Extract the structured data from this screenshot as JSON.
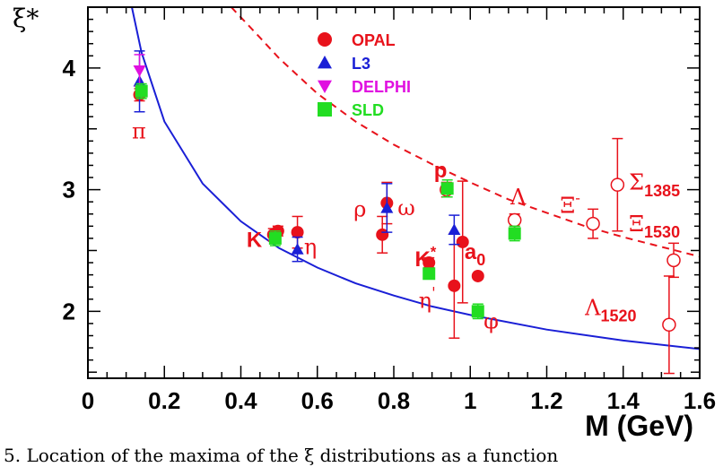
{
  "chart_data": {
    "type": "scatter",
    "ylabel": "ξ*",
    "xlabel": "M (GeV)",
    "xlim": [
      0,
      1.6
    ],
    "ylim": [
      1.45,
      4.5
    ],
    "xticks": [
      {
        "value": 0,
        "label": "0"
      },
      {
        "value": 0.2,
        "label": "0.2"
      },
      {
        "value": 0.4,
        "label": "0.4"
      },
      {
        "value": 0.6,
        "label": "0.6"
      },
      {
        "value": 0.8,
        "label": "0.8"
      },
      {
        "value": 1.0,
        "label": "1"
      },
      {
        "value": 1.2,
        "label": "1.2"
      },
      {
        "value": 1.4,
        "label": "1.4"
      },
      {
        "value": 1.6,
        "label": "1.6"
      }
    ],
    "yticks": [
      {
        "value": 2,
        "label": "2"
      },
      {
        "value": 3,
        "label": "3"
      },
      {
        "value": 4,
        "label": "4"
      }
    ],
    "legend": {
      "placement": "top-center",
      "entries": [
        {
          "name": "OPAL",
          "marker": "circle",
          "color": "#e8121b"
        },
        {
          "name": "L3",
          "marker": "triangle-up",
          "color": "#1a1fd6"
        },
        {
          "name": "DELPHI",
          "marker": "triangle-down",
          "color": "#e010e0"
        },
        {
          "name": "SLD",
          "marker": "square",
          "color": "#22dd22"
        }
      ]
    },
    "series": [
      {
        "name": "OPAL",
        "marker": "circle",
        "color": "#e8121b",
        "points": [
          {
            "x": 0.135,
            "y": 3.78,
            "err": 0.05
          },
          {
            "x": 0.485,
            "y": 2.63,
            "err": 0.05
          },
          {
            "x": 0.497,
            "y": 2.66,
            "err": 0.04
          },
          {
            "x": 0.548,
            "y": 2.65,
            "err": 0.13
          },
          {
            "x": 0.77,
            "y": 2.63,
            "err": 0.15
          },
          {
            "x": 0.782,
            "y": 2.89,
            "err": 0.17
          },
          {
            "x": 0.892,
            "y": 2.4,
            "err": 0.04
          },
          {
            "x": 0.958,
            "y": 2.21,
            "err": 0.43
          },
          {
            "x": 0.98,
            "y": 2.57,
            "err": 0.5
          },
          {
            "x": 1.02,
            "y": 2.29,
            "err": 0.02
          }
        ]
      },
      {
        "name": "OPAL (open)",
        "marker": "circle-open",
        "color": "#e8121b",
        "points": [
          {
            "x": 0.938,
            "y": 3.0,
            "err": 0.06
          },
          {
            "x": 1.116,
            "y": 2.75,
            "err": 0.05
          },
          {
            "x": 1.321,
            "y": 2.72,
            "err": 0.12
          },
          {
            "x": 1.385,
            "y": 3.04,
            "err": 0.38
          },
          {
            "x": 1.52,
            "y": 1.89,
            "err": 0.4
          },
          {
            "x": 1.532,
            "y": 2.42,
            "err": 0.14
          }
        ]
      },
      {
        "name": "L3",
        "marker": "triangle-up",
        "color": "#1a1fd6",
        "points": [
          {
            "x": 0.135,
            "y": 3.89,
            "err": 0.25
          },
          {
            "x": 0.548,
            "y": 2.51,
            "err": 0.1
          },
          {
            "x": 0.782,
            "y": 2.85,
            "err": 0.2
          },
          {
            "x": 0.958,
            "y": 2.67,
            "err": 0.12
          }
        ]
      },
      {
        "name": "DELPHI",
        "marker": "triangle-down",
        "color": "#e010e0",
        "points": [
          {
            "x": 0.135,
            "y": 3.98,
            "err": 0.13
          }
        ]
      },
      {
        "name": "SLD",
        "marker": "square",
        "color": "#22dd22",
        "points": [
          {
            "x": 0.14,
            "y": 3.81,
            "err": 0.06
          },
          {
            "x": 0.49,
            "y": 2.6,
            "err": 0.06
          },
          {
            "x": 0.892,
            "y": 2.31,
            "err": 0.03
          },
          {
            "x": 0.94,
            "y": 3.01,
            "err": 0.07
          },
          {
            "x": 1.02,
            "y": 2.0,
            "err": 0.06
          },
          {
            "x": 1.116,
            "y": 2.64,
            "err": 0.06
          }
        ]
      }
    ],
    "curves": [
      {
        "style": "solid",
        "color": "#1a1fd6",
        "points": [
          [
            0.115,
            4.5
          ],
          [
            0.14,
            4.13
          ],
          [
            0.2,
            3.56
          ],
          [
            0.3,
            3.05
          ],
          [
            0.4,
            2.74
          ],
          [
            0.5,
            2.52
          ],
          [
            0.6,
            2.36
          ],
          [
            0.7,
            2.23
          ],
          [
            0.8,
            2.13
          ],
          [
            0.9,
            2.04
          ],
          [
            1.0,
            1.97
          ],
          [
            1.2,
            1.85
          ],
          [
            1.4,
            1.76
          ],
          [
            1.6,
            1.69
          ]
        ]
      },
      {
        "style": "dashed",
        "color": "#e8121b",
        "points": [
          [
            0.375,
            4.5
          ],
          [
            0.45,
            4.25
          ],
          [
            0.5,
            4.08
          ],
          [
            0.6,
            3.79
          ],
          [
            0.7,
            3.56
          ],
          [
            0.8,
            3.37
          ],
          [
            0.9,
            3.21
          ],
          [
            1.0,
            3.06
          ],
          [
            1.1,
            2.92
          ],
          [
            1.2,
            2.81
          ],
          [
            1.3,
            2.7
          ],
          [
            1.4,
            2.61
          ],
          [
            1.5,
            2.53
          ],
          [
            1.6,
            2.45
          ]
        ]
      }
    ],
    "annotations": [
      {
        "text": "π",
        "x": 0.115,
        "y": 3.42,
        "style": "serif",
        "size": 24
      },
      {
        "text": "K",
        "x": 0.415,
        "y": 2.53,
        "style": "sans",
        "size": 24,
        "sup": ""
      },
      {
        "text": "η",
        "x": 0.565,
        "y": 2.47,
        "style": "serif",
        "size": 24
      },
      {
        "text": "ρ",
        "x": 0.695,
        "y": 2.78,
        "style": "serif",
        "size": 24
      },
      {
        "text": "ω",
        "x": 0.81,
        "y": 2.79,
        "style": "serif",
        "size": 24
      },
      {
        "text": "p",
        "x": 0.905,
        "y": 3.1,
        "style": "sans",
        "size": 24
      },
      {
        "text": "K",
        "x": 0.855,
        "y": 2.37,
        "style": "sans",
        "size": 24,
        "sup": "*"
      },
      {
        "text": "a",
        "x": 0.985,
        "y": 2.43,
        "style": "sans",
        "size": 24,
        "sub": "0"
      },
      {
        "text": "η",
        "x": 0.865,
        "y": 2.03,
        "style": "serif",
        "size": 24,
        "sup": "'"
      },
      {
        "text": "φ",
        "x": 1.035,
        "y": 1.86,
        "style": "serif",
        "size": 24
      },
      {
        "text": "Λ",
        "x": 1.105,
        "y": 2.88,
        "style": "serif",
        "size": 24
      },
      {
        "text": "Ξ",
        "x": 1.235,
        "y": 2.81,
        "style": "serif",
        "size": 24,
        "sup": "-"
      },
      {
        "text": "Σ",
        "x": 1.415,
        "y": 3.0,
        "style": "serif",
        "size": 24,
        "sub": "1385"
      },
      {
        "text": "Ξ",
        "x": 1.415,
        "y": 2.66,
        "style": "serif",
        "size": 24,
        "sub": "1530"
      },
      {
        "text": "Λ",
        "x": 1.3,
        "y": 1.97,
        "style": "serif",
        "size": 24,
        "sub": "1520"
      }
    ],
    "grid": false
  },
  "caption": "5. Location of the maxima of the ξ distributions as a function"
}
